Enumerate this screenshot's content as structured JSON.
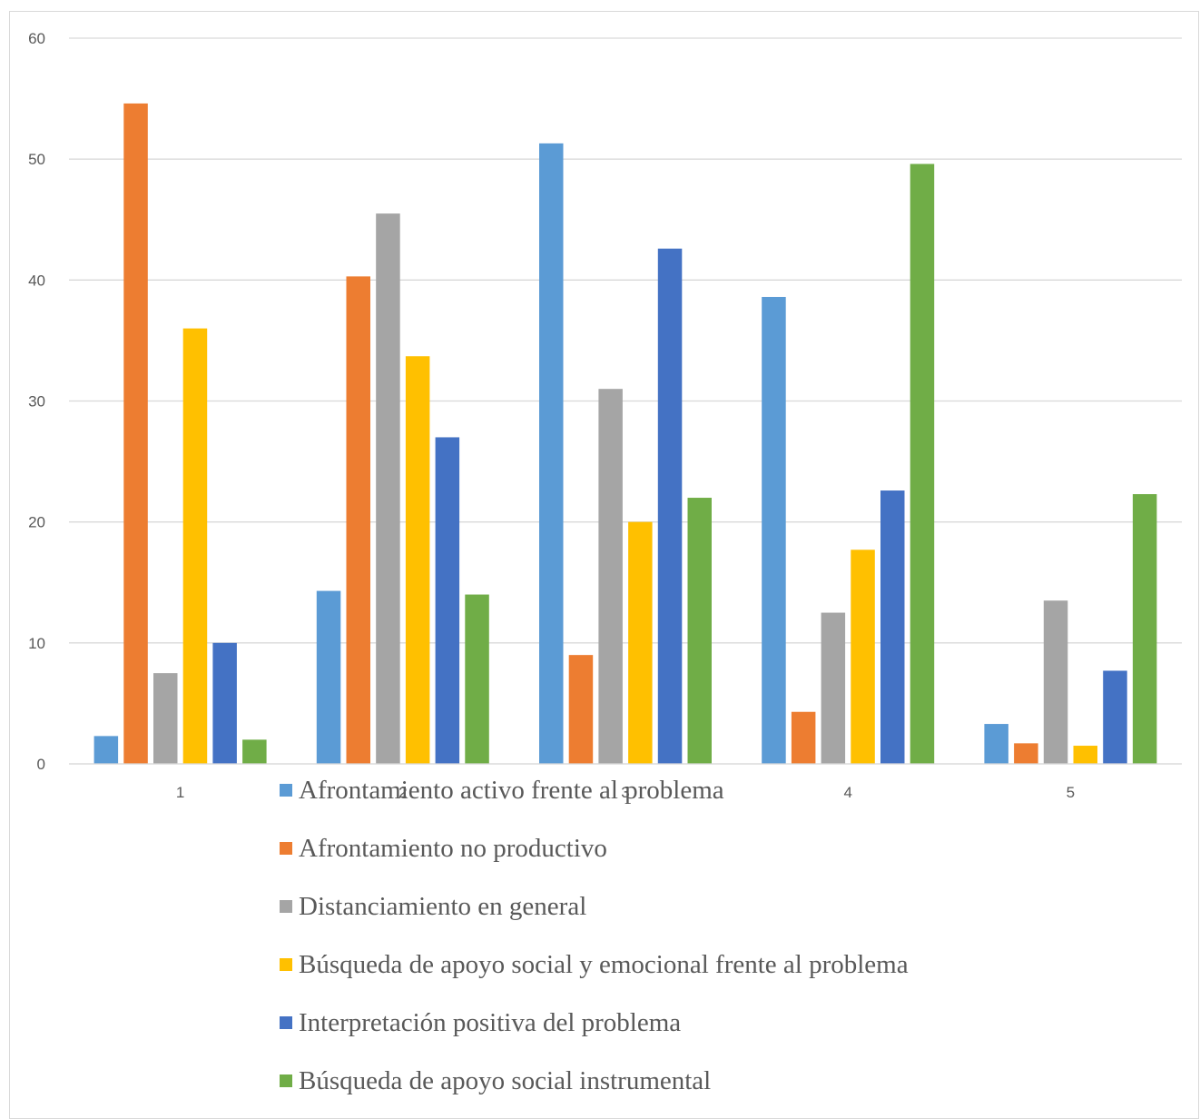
{
  "chart_data": {
    "type": "bar",
    "title": "",
    "xlabel": "",
    "ylabel": "",
    "categories": [
      "1",
      "2",
      "3",
      "4",
      "5"
    ],
    "ylim": [
      0,
      60
    ],
    "yticks": [
      0,
      10,
      20,
      30,
      40,
      50,
      60
    ],
    "grid": true,
    "legend_position": "bottom",
    "series": [
      {
        "name": "Afrontamiento activo frente al problema",
        "color": "#5B9BD5",
        "values": [
          2.3,
          14.3,
          51.3,
          38.6,
          3.3
        ]
      },
      {
        "name": "Afrontamiento no productivo",
        "color": "#ED7D31",
        "values": [
          54.6,
          40.3,
          9.0,
          4.3,
          1.7
        ]
      },
      {
        "name": "Distanciamiento en general",
        "color": "#A5A5A5",
        "values": [
          7.5,
          45.5,
          31.0,
          12.5,
          13.5
        ]
      },
      {
        "name": "Búsqueda de apoyo social y emocional frente al problema",
        "color": "#FFC000",
        "values": [
          36.0,
          33.7,
          20.0,
          17.7,
          1.5
        ]
      },
      {
        "name": "Interpretación positiva del problema",
        "color": "#4472C4",
        "values": [
          10.0,
          27.0,
          42.6,
          22.6,
          7.7
        ]
      },
      {
        "name": "Búsqueda de apoyo social instrumental",
        "color": "#70AD47",
        "values": [
          2.0,
          14.0,
          22.0,
          49.6,
          22.3
        ]
      }
    ]
  }
}
